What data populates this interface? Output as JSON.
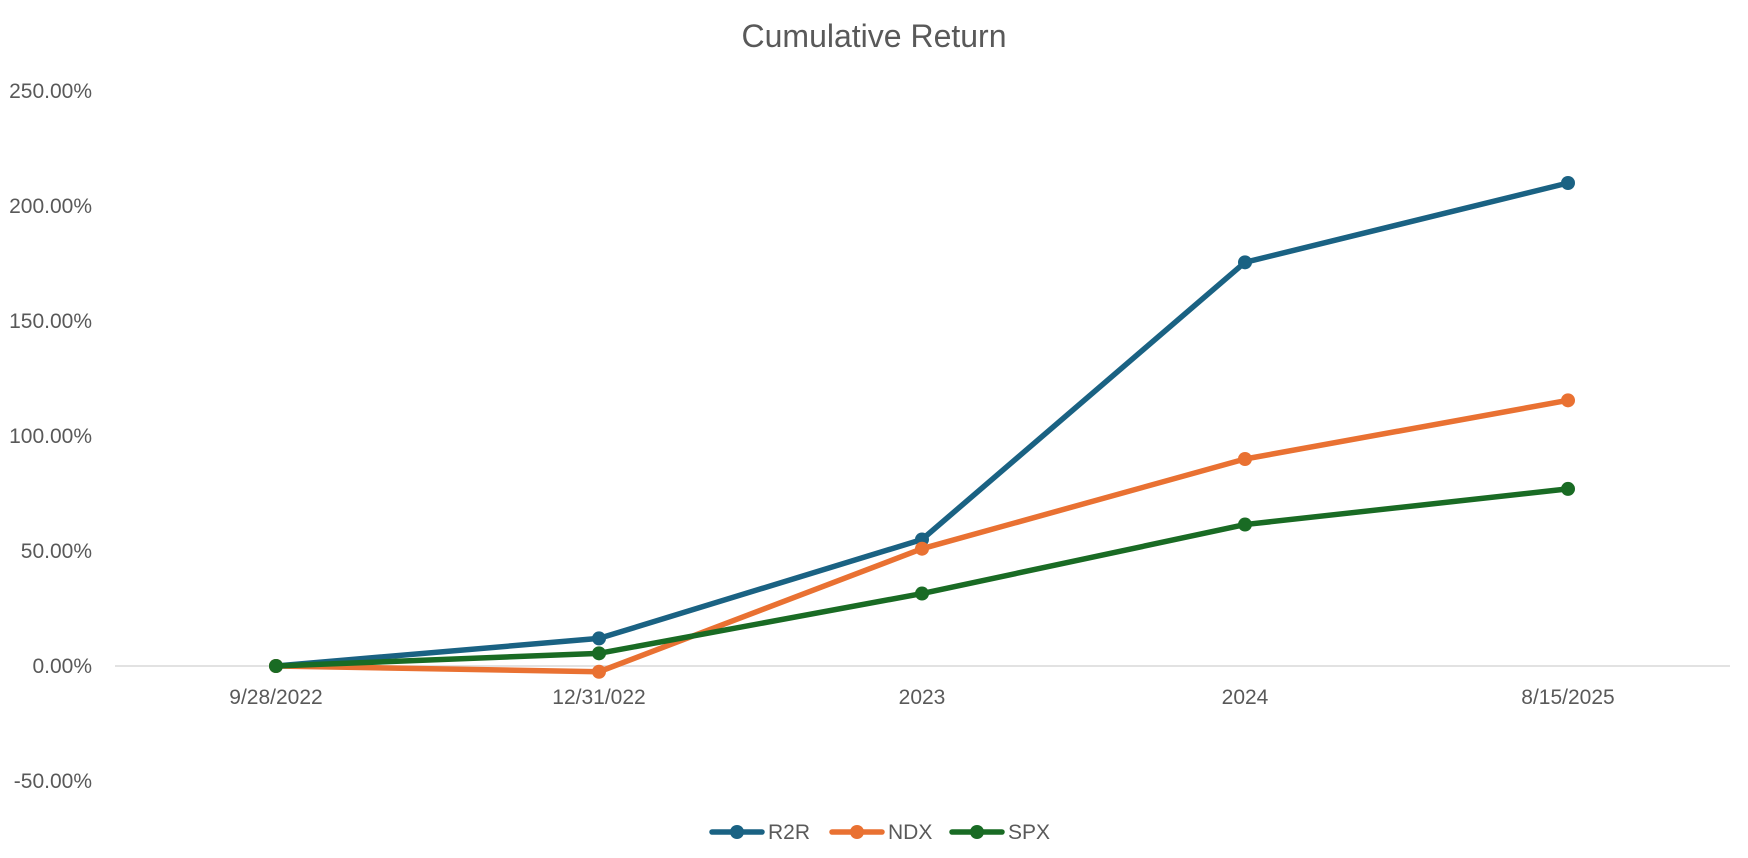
{
  "chart_data": {
    "type": "line",
    "title": "Cumulative Return",
    "categories": [
      "9/28/2022",
      "12/31/022",
      "2023",
      "2024",
      "8/15/2025"
    ],
    "series": [
      {
        "name": "R2R",
        "color": "#1A6283",
        "values": [
          0.0,
          12.0,
          55.0,
          175.5,
          210.0
        ]
      },
      {
        "name": "NDX",
        "color": "#E97132",
        "values": [
          0.0,
          -2.5,
          51.0,
          90.0,
          115.5
        ]
      },
      {
        "name": "SPX",
        "color": "#196B24",
        "values": [
          0.0,
          5.5,
          31.5,
          61.5,
          77.0
        ]
      }
    ],
    "y_ticks": [
      "250.00%",
      "200.00%",
      "150.00%",
      "100.00%",
      "50.00%",
      "0.00%",
      "-50.00%"
    ],
    "ylim": [
      -50,
      250
    ],
    "y_unit": "%",
    "xlabel": "",
    "ylabel": "",
    "grid": false,
    "zero_line": true,
    "legend_position": "bottom"
  }
}
